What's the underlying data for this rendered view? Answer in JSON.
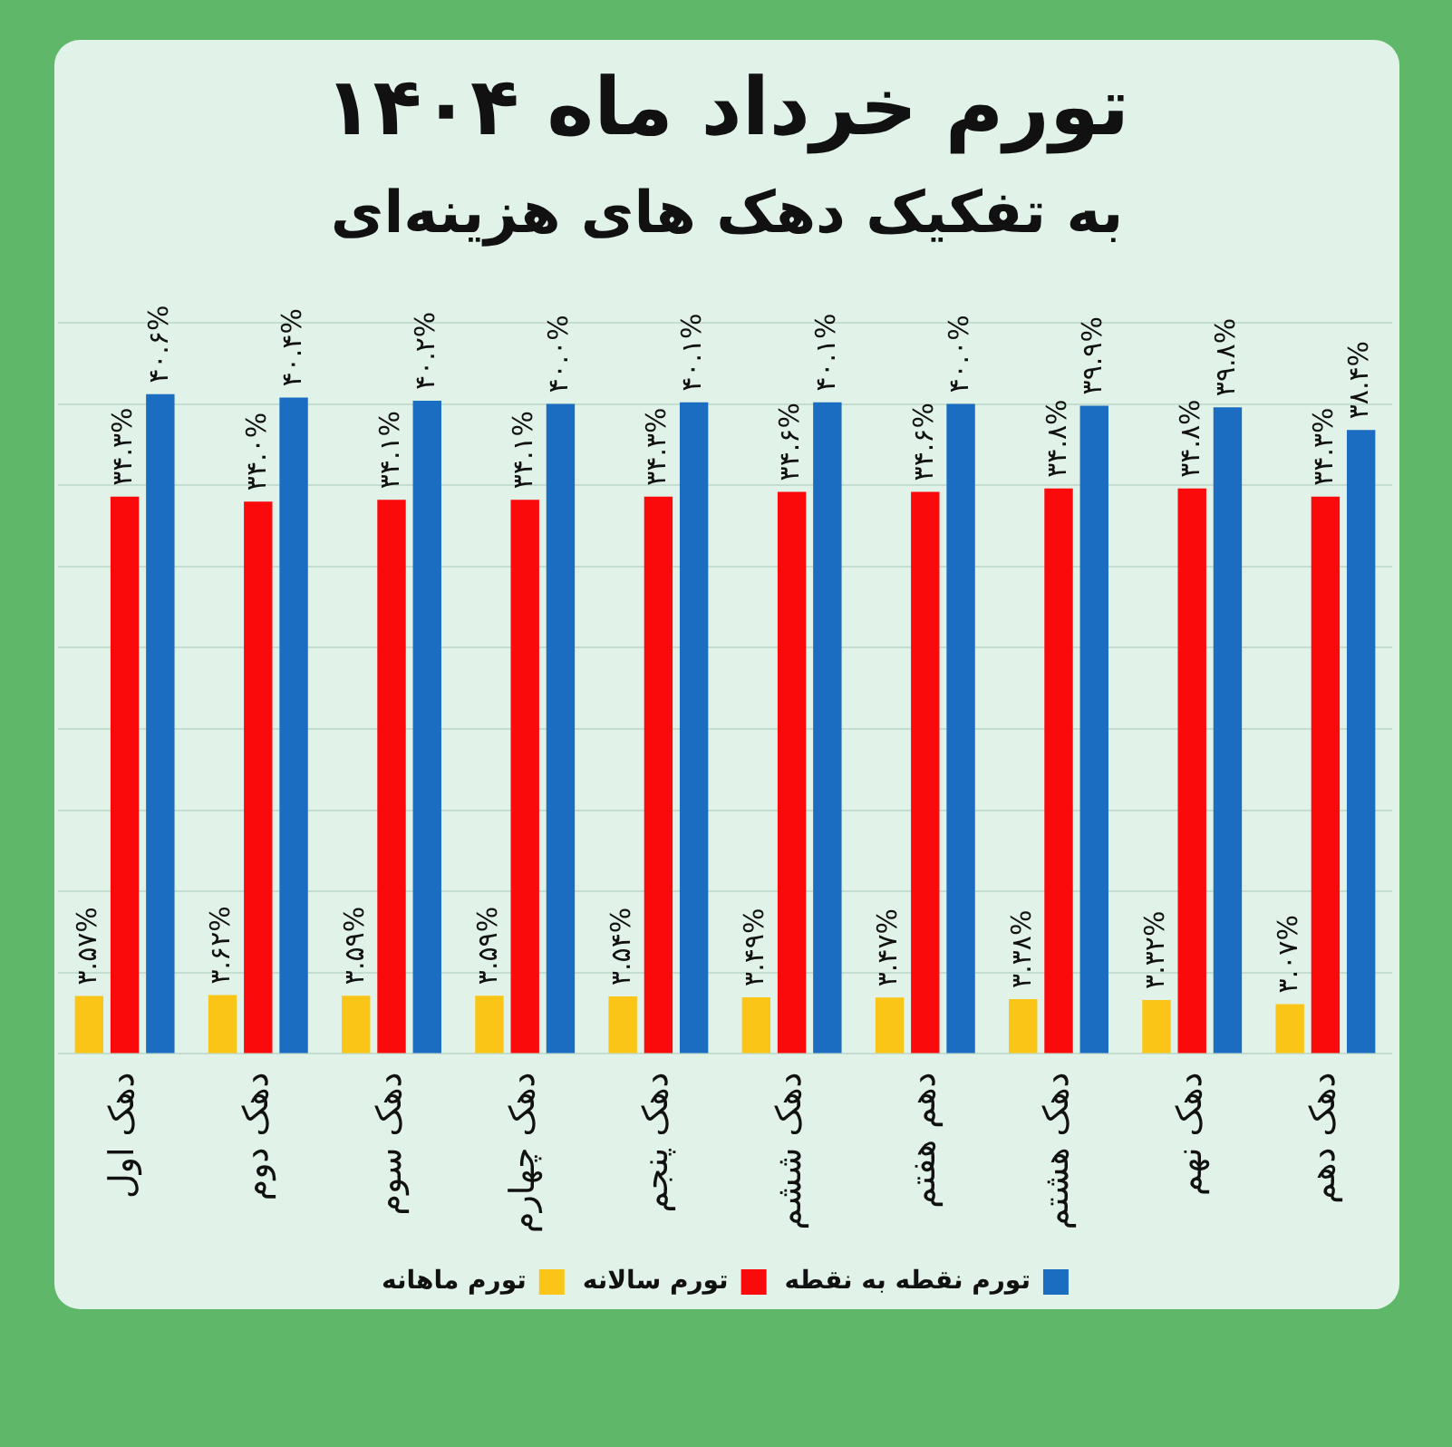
{
  "chart_data": {
    "type": "bar",
    "title": "تورم خرداد ماه ۱۴۰۴",
    "subtitle": "به تفکیک دهک های هزینه‌ای",
    "categories": [
      "دهک اول",
      "دهک دوم",
      "دهک سوم",
      "دهک چهارم",
      "دهک پنجم",
      "دهک ششم",
      "دهم هفتم",
      "دهک هشتم",
      "دهک نهم",
      "دهک دهم"
    ],
    "series": [
      {
        "name": "تورم ماهانه",
        "color": "#fbc518",
        "values": [
          3.57,
          3.62,
          3.59,
          3.59,
          3.54,
          3.49,
          3.47,
          3.38,
          3.32,
          3.07
        ],
        "value_labels": [
          "۳.۵۷%",
          "۳.۶۲%",
          "۳.۵۹%",
          "۳.۵۹%",
          "۳.۵۴%",
          "۳.۴۹%",
          "۳.۴۷%",
          "۳.۳۸%",
          "۳.۳۲%",
          "۳.۰۷%"
        ]
      },
      {
        "name": "تورم سالانه",
        "color": "#fa0a0a",
        "values": [
          34.3,
          34.0,
          34.1,
          34.1,
          34.3,
          34.6,
          34.6,
          34.8,
          34.8,
          34.3
        ],
        "value_labels": [
          "۳۴.۳%",
          "۳۴.۰%",
          "۳۴.۱%",
          "۳۴.۱%",
          "۳۴.۳%",
          "۳۴.۶%",
          "۳۴.۶%",
          "۳۴.۸%",
          "۳۴.۸%",
          "۳۴.۳%"
        ]
      },
      {
        "name": "تورم نقطه به نقطه",
        "color": "#1a6dc0",
        "values": [
          40.6,
          40.4,
          40.2,
          40.0,
          40.1,
          40.1,
          40.0,
          39.9,
          39.8,
          38.4
        ],
        "value_labels": [
          "۴۰.۶%",
          "۴۰.۴%",
          "۴۰.۲%",
          "۴۰.۰%",
          "۴۰.۱%",
          "۴۰.۱%",
          "۴۰.۰%",
          "۳۹.۹%",
          "۳۹.۸%",
          "۳۸.۴%"
        ]
      }
    ],
    "ylim": [
      0,
      45
    ],
    "yticks": [
      {
        "value": 0,
        "label": null
      },
      {
        "value": 5,
        "label": null
      },
      {
        "value": 10,
        "label": null
      },
      {
        "value": 15,
        "label": null
      },
      {
        "value": 20,
        "label": null
      },
      {
        "value": 25,
        "label": null
      },
      {
        "value": 30,
        "label": null
      },
      {
        "value": 35,
        "label": null
      },
      {
        "value": 40,
        "label": null
      },
      {
        "value": 45,
        "label": null
      }
    ],
    "grid": "y",
    "legend": "bottom",
    "tick_labels": "x"
  }
}
